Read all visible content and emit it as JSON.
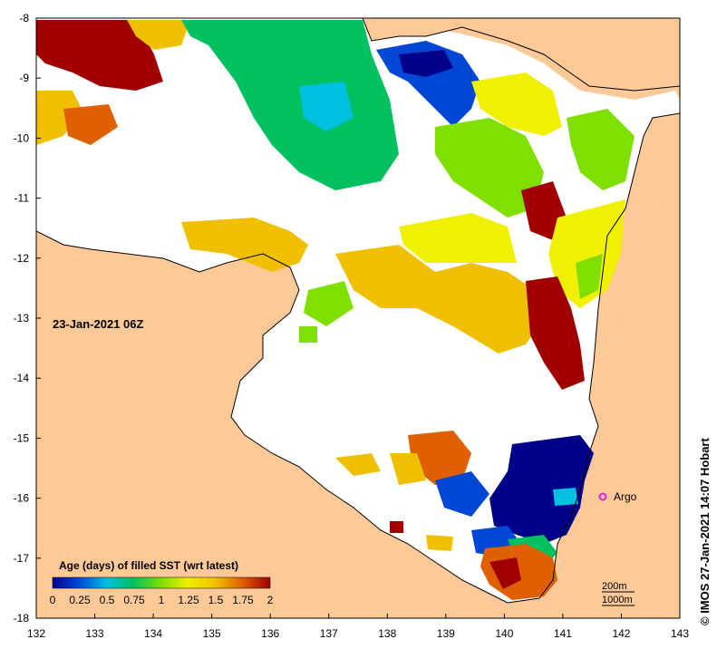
{
  "map": {
    "date_label": "23-Jan-2021 06Z",
    "credit": "© IMOS 27-Jan-2021 14:07 Hobart",
    "argo_label": "Argo",
    "scale_labels": [
      "200m",
      "1000m"
    ],
    "x_ticks": [
      "132",
      "133",
      "134",
      "135",
      "136",
      "137",
      "138",
      "139",
      "140",
      "141",
      "142",
      "143"
    ],
    "y_ticks": [
      "-8",
      "-9",
      "-10",
      "-11",
      "-12",
      "-13",
      "-14",
      "-15",
      "-16",
      "-17",
      "-18"
    ],
    "lon_range": [
      132,
      143
    ],
    "lat_range": [
      -18,
      -8
    ],
    "colors": {
      "land": "#fcc997",
      "ocean_nodata": "#ffffff",
      "argo": "#e020e0"
    }
  },
  "legend": {
    "title": "Age (days) of filled SST (wrt latest)",
    "ticks": [
      "0",
      "0.25",
      "0.5",
      "0.75",
      "1",
      "1.25",
      "1.5",
      "1.75",
      "2"
    ],
    "stops": [
      "#00008b",
      "#0047d6",
      "#00c0e0",
      "#00c060",
      "#7fe000",
      "#f0f000",
      "#f0c000",
      "#e06000",
      "#a00000"
    ]
  }
}
